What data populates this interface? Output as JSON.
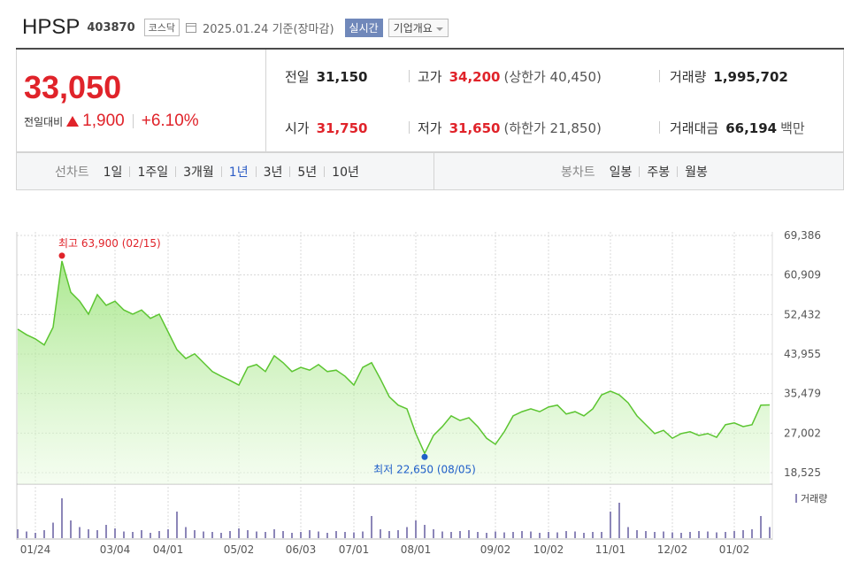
{
  "header": {
    "name": "HPSP",
    "code": "403870",
    "market": "코스닥",
    "date": "2025.01.24 기준(장마감)",
    "realtime": "실시간",
    "company": "기업개요"
  },
  "quote": {
    "price": "33,050",
    "change_label": "전일대비",
    "change": "1,900",
    "change_pct": "+6.10%"
  },
  "stats": [
    {
      "label": "전일",
      "value": "31,150",
      "color": "#222222"
    },
    {
      "label": "고가",
      "value": "34,200",
      "note": "(상한가 40,450)",
      "color": "#e0232a"
    },
    {
      "label": "거래량",
      "value": "1,995,702",
      "color": "#222222"
    },
    {
      "label": "시가",
      "value": "31,750",
      "color": "#e0232a"
    },
    {
      "label": "저가",
      "value": "31,650",
      "note": "(하한가 21,850)",
      "color": "#e0232a"
    },
    {
      "label": "거래대금",
      "value": "66,194",
      "note": "백만",
      "color": "#222222"
    }
  ],
  "tabs": {
    "line_label": "선차트",
    "line_periods": [
      "1일",
      "1주일",
      "3개월",
      "1년",
      "3년",
      "5년",
      "10년"
    ],
    "active": "1년",
    "candle_label": "봉차트",
    "candle_periods": [
      "일봉",
      "주봉",
      "월봉"
    ]
  },
  "chart_data": {
    "type": "area",
    "color": "#5cc531",
    "categories": [
      null,
      null,
      "01/24",
      null,
      null,
      null,
      null,
      null,
      null,
      null,
      null,
      "03/04",
      null,
      null,
      null,
      null,
      null,
      "04/01",
      null,
      null,
      null,
      null,
      null,
      null,
      null,
      "05/02",
      null,
      null,
      null,
      null,
      null,
      null,
      "06/03",
      null,
      null,
      null,
      null,
      null,
      "07/01",
      null,
      null,
      null,
      null,
      null,
      null,
      "08/01",
      null,
      null,
      null,
      null,
      null,
      null,
      null,
      null,
      "09/02",
      null,
      null,
      null,
      null,
      null,
      "10/02",
      null,
      null,
      null,
      null,
      null,
      null,
      "11/01",
      null,
      null,
      null,
      null,
      null,
      null,
      "12/02",
      null,
      null,
      null,
      null,
      null,
      null,
      "01/02",
      null,
      null,
      null,
      null
    ],
    "values": [
      49300,
      48100,
      47200,
      45900,
      49700,
      63900,
      57200,
      55300,
      52500,
      56700,
      54400,
      55300,
      53400,
      52500,
      53400,
      51600,
      52500,
      48700,
      44900,
      43000,
      44000,
      42100,
      40200,
      39200,
      38300,
      37300,
      41100,
      41700,
      40200,
      43600,
      42100,
      40200,
      41100,
      40500,
      41700,
      40200,
      40500,
      39200,
      37300,
      41100,
      42100,
      38600,
      34800,
      33000,
      32200,
      26900,
      22650,
      26500,
      28400,
      30700,
      29700,
      30300,
      28400,
      25900,
      24600,
      27300,
      30700,
      31600,
      32200,
      31600,
      32600,
      33000,
      31100,
      31600,
      30700,
      32200,
      35200,
      36000,
      35200,
      33500,
      30700,
      28800,
      26900,
      27600,
      25900,
      26900,
      27300,
      26500,
      26900,
      26100,
      28800,
      29200,
      28400,
      28800,
      33000,
      33050
    ],
    "ylim": [
      18525,
      69386
    ],
    "yticks": [
      {
        "value": 18525,
        "label": "18,525"
      },
      {
        "value": 27002,
        "label": "27,002"
      },
      {
        "value": 35479,
        "label": "35,479"
      },
      {
        "value": 43955,
        "label": "43,955"
      },
      {
        "value": 52432,
        "label": "52,432"
      },
      {
        "value": 60909,
        "label": "60,909"
      },
      {
        "value": 69386,
        "label": "69,386"
      }
    ],
    "grid": true,
    "high_label": "최고 63,900 (02/15)",
    "high_color": "#e0232a",
    "low_label": "최저 22,650 (08/05)",
    "low_color": "#1f5fc9",
    "volume": {
      "name": "거래량",
      "color": "#8c86b8",
      "ylim": [
        0,
        100
      ],
      "values": [
        20,
        15,
        12,
        18,
        35,
        90,
        40,
        25,
        20,
        18,
        30,
        22,
        15,
        14,
        18,
        12,
        16,
        20,
        60,
        25,
        18,
        15,
        14,
        12,
        16,
        22,
        18,
        15,
        14,
        20,
        16,
        12,
        14,
        18,
        15,
        12,
        16,
        14,
        13,
        15,
        50,
        20,
        16,
        18,
        25,
        40,
        30,
        20,
        15,
        14,
        16,
        18,
        14,
        12,
        15,
        13,
        14,
        16,
        15,
        12,
        14,
        13,
        16,
        15,
        12,
        14,
        14,
        60,
        80,
        25,
        18,
        16,
        14,
        15,
        13,
        12,
        14,
        16,
        15,
        13,
        14,
        16,
        18,
        20,
        50,
        25
      ]
    }
  }
}
